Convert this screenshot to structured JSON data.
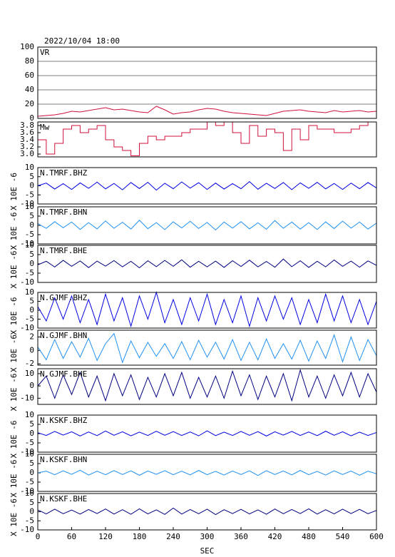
{
  "chart_data": [
    {
      "type": "line",
      "title": "2022/10/04 18:00",
      "label": "VR",
      "color": "#d0103a",
      "grid": true,
      "x": [
        0,
        15,
        30,
        45,
        60,
        75,
        90,
        105,
        120,
        135,
        150,
        165,
        180,
        195,
        210,
        225,
        240,
        255,
        270,
        285,
        300,
        315,
        330,
        345,
        360,
        375,
        390,
        405,
        420,
        435,
        450,
        465,
        480,
        495,
        510,
        525,
        540,
        555,
        570,
        585,
        600
      ],
      "values": [
        3,
        4,
        5,
        7,
        10,
        9,
        11,
        13,
        15,
        12,
        13,
        11,
        9,
        8,
        17,
        12,
        6,
        8,
        9,
        12,
        14,
        13,
        10,
        8,
        7,
        6,
        5,
        4,
        7,
        10,
        11,
        12,
        10,
        9,
        8,
        11,
        9,
        10,
        11,
        9,
        10
      ],
      "xlim": [
        0,
        600
      ],
      "ylim": [
        0,
        100
      ],
      "yticks": [
        0,
        20,
        40,
        60,
        80,
        100
      ]
    },
    {
      "type": "step",
      "label": "Mw",
      "color": "#d0103a",
      "x": [
        0,
        15,
        30,
        45,
        60,
        75,
        90,
        105,
        120,
        135,
        150,
        165,
        180,
        195,
        210,
        225,
        240,
        255,
        270,
        285,
        300,
        315,
        330,
        345,
        360,
        375,
        390,
        405,
        420,
        435,
        450,
        465,
        480,
        495,
        510,
        525,
        540,
        555,
        570,
        585,
        600
      ],
      "values": [
        3.4,
        3.0,
        3.3,
        3.7,
        3.8,
        3.6,
        3.7,
        3.8,
        3.4,
        3.2,
        3.1,
        2.95,
        3.3,
        3.5,
        3.4,
        3.5,
        3.5,
        3.6,
        3.7,
        3.7,
        3.9,
        3.8,
        3.9,
        3.6,
        3.3,
        3.8,
        3.5,
        3.7,
        3.6,
        3.1,
        3.7,
        3.4,
        3.8,
        3.7,
        3.7,
        3.6,
        3.6,
        3.7,
        3.8,
        3.9,
        3.8
      ],
      "xlim": [
        0,
        600
      ],
      "ylim": [
        2.92,
        3.9
      ],
      "yticks": [
        {
          "value": 3.0,
          "label": "3.0"
        },
        3.2,
        3.4,
        3.6,
        3.8
      ]
    },
    {
      "type": "line",
      "label": "N.TMRF.BHZ",
      "ylabel": "X 10E -6",
      "color": "#0000e0",
      "x": [
        0,
        15,
        30,
        45,
        60,
        75,
        90,
        105,
        120,
        135,
        150,
        165,
        180,
        195,
        210,
        225,
        240,
        255,
        270,
        285,
        300,
        315,
        330,
        345,
        360,
        375,
        390,
        405,
        420,
        435,
        450,
        465,
        480,
        495,
        510,
        525,
        540,
        555,
        570,
        585,
        600
      ],
      "values": [
        0,
        1.5,
        -1.8,
        1.2,
        -2,
        1.6,
        -1.4,
        2,
        -1.7,
        1.3,
        -2.2,
        1.8,
        -1.5,
        1.9,
        -2.4,
        1.4,
        -1.6,
        2.1,
        -1.3,
        1.7,
        -2,
        1.5,
        -1.8,
        1.2,
        -1.6,
        2.3,
        -1.9,
        1.4,
        -1.5,
        1.8,
        -2.1,
        1.6,
        -1.4,
        1.9,
        -1.7,
        1.3,
        -2,
        1.5,
        -1.6,
        1.8,
        -1.2
      ],
      "xlim": [
        0,
        600
      ],
      "ylim": [
        -10,
        10
      ],
      "yticks": [
        -10,
        -5,
        0,
        5,
        10
      ]
    },
    {
      "type": "line",
      "label": "N.TMRF.BHN",
      "ylabel": "X 10E -6",
      "color": "#2090f0",
      "x": [
        0,
        15,
        30,
        45,
        60,
        75,
        90,
        105,
        120,
        135,
        150,
        165,
        180,
        195,
        210,
        225,
        240,
        255,
        270,
        285,
        300,
        315,
        330,
        345,
        360,
        375,
        390,
        405,
        420,
        435,
        450,
        465,
        480,
        495,
        510,
        525,
        540,
        555,
        570,
        585,
        600
      ],
      "values": [
        1,
        -1.6,
        2,
        -1.3,
        1.8,
        -2.2,
        1.5,
        -1.9,
        2.4,
        -1.6,
        1.7,
        -2,
        2.8,
        -1.8,
        1.5,
        -2.3,
        1.9,
        -1.4,
        2.2,
        -1.7,
        1.6,
        -2.5,
        1.8,
        -1.5,
        2,
        -1.9,
        1.4,
        -2.1,
        2.6,
        -1.6,
        1.8,
        -2,
        1.5,
        -2.2,
        1.9,
        -1.7,
        2.3,
        -1.5,
        1.8,
        -2,
        1.2
      ],
      "xlim": [
        0,
        600
      ],
      "ylim": [
        -10,
        10
      ],
      "yticks": [
        -10,
        -5,
        0,
        5,
        10
      ]
    },
    {
      "type": "line",
      "label": "N.TMRF.BHE",
      "ylabel": "X 10E -6",
      "color": "#000080",
      "x": [
        0,
        15,
        30,
        45,
        60,
        75,
        90,
        105,
        120,
        135,
        150,
        165,
        180,
        195,
        210,
        225,
        240,
        255,
        270,
        285,
        300,
        315,
        330,
        345,
        360,
        375,
        390,
        405,
        420,
        435,
        450,
        465,
        480,
        495,
        510,
        525,
        540,
        555,
        570,
        585,
        600
      ],
      "values": [
        -0.5,
        1.4,
        -1.7,
        1.9,
        -1.3,
        1.6,
        -2,
        1.5,
        -1.2,
        1.8,
        -1.6,
        1.4,
        -2.1,
        1.7,
        -1.5,
        1.9,
        -1.3,
        2.2,
        -1.8,
        1.4,
        -1.6,
        1.5,
        -1.9,
        1.7,
        -1.4,
        2,
        -1.6,
        1.3,
        -1.8,
        2.6,
        -1.5,
        1.7,
        -1.9,
        1.4,
        -1.6,
        2.1,
        -1.3,
        1.5,
        -1.8,
        1.6,
        -0.8
      ],
      "xlim": [
        0,
        600
      ],
      "ylim": [
        -10,
        10
      ],
      "yticks": [
        -10,
        -5,
        0,
        5,
        10
      ]
    },
    {
      "type": "line",
      "label": "N.GJMF.BHZ",
      "ylabel": "X 10E -6",
      "color": "#0000e0",
      "x": [
        0,
        15,
        30,
        45,
        60,
        75,
        90,
        105,
        120,
        135,
        150,
        165,
        180,
        195,
        210,
        225,
        240,
        255,
        270,
        285,
        300,
        315,
        330,
        345,
        360,
        375,
        390,
        405,
        420,
        435,
        450,
        465,
        480,
        495,
        510,
        525,
        540,
        555,
        570,
        585,
        600
      ],
      "values": [
        2,
        -6,
        7,
        -5,
        8,
        -7,
        6,
        -8,
        9,
        -6,
        7,
        -9,
        8,
        -5,
        10,
        -7,
        6,
        -8,
        7,
        -6,
        9,
        -8,
        6,
        -7,
        8,
        -9,
        7,
        -6,
        8,
        -5,
        7,
        -8,
        6,
        -7,
        9,
        -6,
        8,
        -7,
        6,
        -8,
        5
      ],
      "xlim": [
        0,
        600
      ],
      "ylim": [
        -10,
        10
      ],
      "yticks": [
        -10,
        -5,
        0,
        5,
        10
      ]
    },
    {
      "type": "line",
      "label": "N.GJMF.BHN",
      "ylabel": "X 10E -6",
      "color": "#2090f0",
      "x": [
        0,
        15,
        30,
        45,
        60,
        75,
        90,
        105,
        120,
        135,
        150,
        165,
        180,
        195,
        210,
        225,
        240,
        255,
        270,
        285,
        300,
        315,
        330,
        345,
        360,
        375,
        390,
        405,
        420,
        435,
        450,
        465,
        480,
        495,
        510,
        525,
        540,
        555,
        570,
        585,
        600
      ],
      "values": [
        0.5,
        -1.4,
        1.6,
        -1.2,
        1.3,
        -1,
        1.8,
        -1.5,
        1,
        2.5,
        -1.8,
        1.4,
        -1.1,
        1.2,
        -0.9,
        1,
        -1.2,
        1.3,
        -1.4,
        1.5,
        -1,
        1.2,
        -1.3,
        1.6,
        -1.5,
        1.2,
        -1.4,
        1.7,
        -1.2,
        1,
        -1.3,
        1.5,
        -1.6,
        1.4,
        -1.2,
        2.3,
        -1.7,
        2,
        -1.5,
        1.6,
        -0.8
      ],
      "xlim": [
        0,
        600
      ],
      "ylim": [
        -2.2,
        3
      ],
      "yticks": [
        -2,
        0,
        2
      ]
    },
    {
      "type": "line",
      "label": "N.GJMF.BHE",
      "ylabel": "X 10E -6",
      "color": "#000080",
      "x": [
        0,
        15,
        30,
        45,
        60,
        75,
        90,
        105,
        120,
        135,
        150,
        165,
        180,
        195,
        210,
        225,
        240,
        255,
        270,
        285,
        300,
        315,
        330,
        345,
        360,
        375,
        390,
        405,
        420,
        435,
        450,
        465,
        480,
        495,
        510,
        525,
        540,
        555,
        570,
        585,
        600
      ],
      "values": [
        0,
        8,
        -10,
        9,
        -7,
        11,
        -9,
        8,
        -12,
        10,
        -8,
        9,
        -11,
        7,
        -9,
        10,
        -8,
        11,
        -10,
        7,
        -9,
        8,
        -10,
        12,
        -8,
        9,
        -11,
        8,
        -9,
        10,
        -12,
        13,
        -9,
        8,
        -10,
        9,
        -8,
        11,
        -9,
        10,
        -5
      ],
      "xlim": [
        0,
        600
      ],
      "ylim": [
        -15,
        14
      ],
      "yticks": [
        -10,
        0,
        10
      ]
    },
    {
      "type": "line",
      "label": "N.KSKF.BHZ",
      "ylabel": "X 10E -6",
      "color": "#0000e0",
      "x": [
        0,
        15,
        30,
        45,
        60,
        75,
        90,
        105,
        120,
        135,
        150,
        165,
        180,
        195,
        210,
        225,
        240,
        255,
        270,
        285,
        300,
        315,
        330,
        345,
        360,
        375,
        390,
        405,
        420,
        435,
        450,
        465,
        480,
        495,
        510,
        525,
        540,
        555,
        570,
        585,
        600
      ],
      "values": [
        0.5,
        -1,
        1.2,
        -0.8,
        1,
        -1.3,
        0.9,
        -1.1,
        1.4,
        -0.9,
        1,
        -1.2,
        0.8,
        -1,
        1.3,
        -0.9,
        1.1,
        -1,
        0.9,
        -1.2,
        1.5,
        -1.1,
        0.8,
        -1,
        1.2,
        -0.9,
        1.1,
        -1.3,
        1,
        -0.8,
        1.2,
        -1,
        0.9,
        -1.1,
        1.3,
        -0.9,
        1,
        -1.2,
        0.8,
        -1,
        0.6
      ],
      "xlim": [
        0,
        600
      ],
      "ylim": [
        -10,
        10
      ],
      "yticks": [
        -10,
        -5,
        0,
        5,
        10
      ]
    },
    {
      "type": "line",
      "label": "N.KSKF.BHN",
      "ylabel": "X 10E -6",
      "color": "#2090f0",
      "x": [
        0,
        15,
        30,
        45,
        60,
        75,
        90,
        105,
        120,
        135,
        150,
        165,
        180,
        195,
        210,
        225,
        240,
        255,
        270,
        285,
        300,
        315,
        330,
        345,
        360,
        375,
        390,
        405,
        420,
        435,
        450,
        465,
        480,
        495,
        510,
        525,
        540,
        555,
        570,
        585,
        600
      ],
      "values": [
        0,
        0.9,
        -1,
        1.1,
        -0.8,
        1.4,
        -1.2,
        0.9,
        -1,
        1.2,
        -0.9,
        1.1,
        -1.3,
        1,
        -0.8,
        1.2,
        -1,
        0.9,
        -1.1,
        1.3,
        -1,
        0.8,
        -1.2,
        1,
        -0.9,
        1.1,
        -1.4,
        1.2,
        -0.9,
        1,
        -1.1,
        1.3,
        -1,
        0.8,
        -1.2,
        1.1,
        -0.9,
        1,
        -1.3,
        0.9,
        -0.5
      ],
      "xlim": [
        0,
        600
      ],
      "ylim": [
        -10,
        10
      ],
      "yticks": [
        -10,
        -5,
        0,
        5,
        10
      ]
    },
    {
      "type": "line",
      "label": "N.KSKF.BHE",
      "ylabel": "X 10E -6",
      "color": "#000080",
      "xlabel": "SEC",
      "x": [
        0,
        15,
        30,
        45,
        60,
        75,
        90,
        105,
        120,
        135,
        150,
        165,
        180,
        195,
        210,
        225,
        240,
        255,
        270,
        285,
        300,
        315,
        330,
        345,
        360,
        375,
        390,
        405,
        420,
        435,
        450,
        465,
        480,
        495,
        510,
        525,
        540,
        555,
        570,
        585,
        600
      ],
      "values": [
        1,
        -1.2,
        1.4,
        -1.1,
        0.9,
        -1.3,
        1.2,
        -1,
        1.5,
        -1.3,
        1.1,
        -1.4,
        1.6,
        -1.2,
        1,
        -1.5,
        2,
        -1.3,
        1.2,
        -1.1,
        1.4,
        -1.6,
        1.1,
        -1,
        1.3,
        -1.2,
        1,
        -1.4,
        1.5,
        -1.1,
        1.2,
        -1,
        1.6,
        -1.3,
        1.1,
        -1.2,
        1.4,
        -1,
        1.3,
        -1.1,
        0.7
      ],
      "xlim": [
        0,
        600
      ],
      "ylim": [
        -10,
        10
      ],
      "yticks": [
        -10,
        -5,
        0,
        5,
        10
      ],
      "xticks": [
        0,
        60,
        120,
        180,
        240,
        300,
        360,
        420,
        480,
        540,
        600
      ]
    }
  ]
}
